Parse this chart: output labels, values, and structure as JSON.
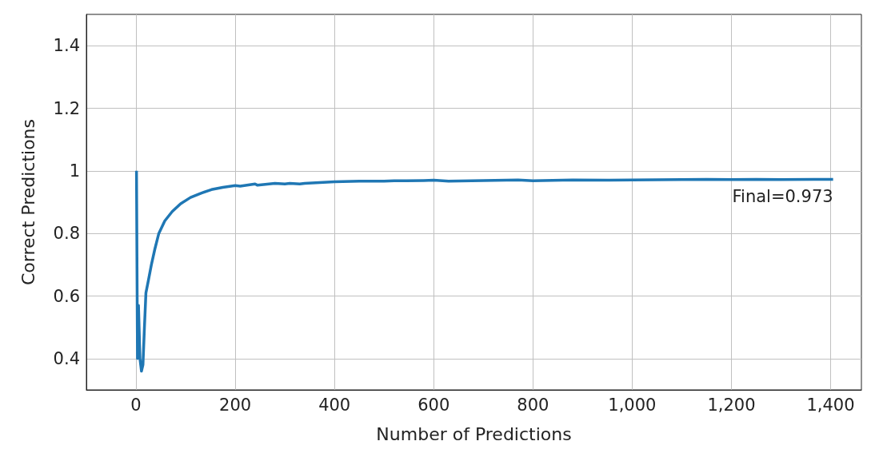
{
  "chart_data": {
    "type": "line",
    "xlabel": "Number of Predictions",
    "ylabel": "Correct Predictions",
    "x": [
      1,
      3,
      5,
      8,
      11,
      14,
      17,
      20,
      25,
      31,
      38,
      46,
      58,
      73,
      90,
      110,
      130,
      152,
      175,
      200,
      210,
      240,
      245,
      280,
      300,
      310,
      330,
      340,
      400,
      450,
      500,
      520,
      580,
      600,
      630,
      700,
      770,
      800,
      880,
      950,
      1000,
      1100,
      1150,
      1200,
      1250,
      1300,
      1405
    ],
    "series": [
      {
        "color": "#1f77b4",
        "values": [
          1.0,
          0.4,
          0.57,
          0.4,
          0.36,
          0.38,
          0.5,
          0.61,
          0.65,
          0.7,
          0.75,
          0.8,
          0.84,
          0.87,
          0.895,
          0.915,
          0.928,
          0.94,
          0.947,
          0.953,
          0.951,
          0.958,
          0.954,
          0.96,
          0.958,
          0.96,
          0.958,
          0.96,
          0.965,
          0.967,
          0.967,
          0.968,
          0.969,
          0.97,
          0.967,
          0.969,
          0.971,
          0.968,
          0.971,
          0.97,
          0.971,
          0.972,
          0.973,
          0.972,
          0.973,
          0.972,
          0.973
        ]
      }
    ],
    "annotations": [
      {
        "text": "Final=0.973",
        "x": 1405,
        "y": 0.973
      }
    ],
    "xlim": [
      -100,
      1462
    ],
    "xticks": [
      0,
      200,
      400,
      600,
      800,
      {
        "value": 1000,
        "label": "1,000"
      },
      {
        "value": 1200,
        "label": "1,200"
      },
      {
        "value": 1400,
        "label": "1,400"
      }
    ],
    "ylim": [
      0.3,
      1.5
    ],
    "yticks": [
      0.4,
      0.6,
      0.8,
      1,
      1.2,
      1.4
    ],
    "grid": true,
    "marker": "none",
    "line_style": "solid"
  }
}
